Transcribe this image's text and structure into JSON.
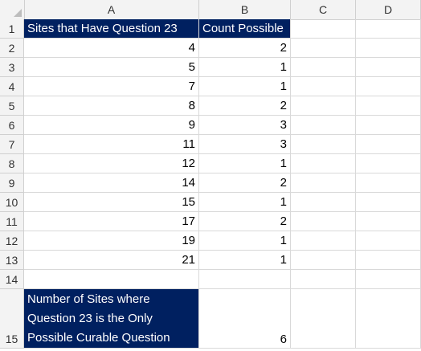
{
  "sheet": {
    "columns": [
      "A",
      "B",
      "C",
      "D"
    ],
    "header": {
      "row_number": "1",
      "col_a": "Sites that Have Question 23",
      "col_b": "Count Possible"
    },
    "rows": [
      {
        "row": "2",
        "a": "4",
        "b": "2"
      },
      {
        "row": "3",
        "a": "5",
        "b": "1"
      },
      {
        "row": "4",
        "a": "7",
        "b": "1"
      },
      {
        "row": "5",
        "a": "8",
        "b": "2"
      },
      {
        "row": "6",
        "a": "9",
        "b": "3"
      },
      {
        "row": "7",
        "a": "11",
        "b": "3"
      },
      {
        "row": "8",
        "a": "12",
        "b": "1"
      },
      {
        "row": "9",
        "a": "14",
        "b": "2"
      },
      {
        "row": "10",
        "a": "15",
        "b": "1"
      },
      {
        "row": "11",
        "a": "17",
        "b": "2"
      },
      {
        "row": "12",
        "a": "19",
        "b": "1"
      },
      {
        "row": "13",
        "a": "21",
        "b": "1"
      }
    ],
    "row14": {
      "row": "14"
    },
    "summary": {
      "row": "15",
      "label": "Number of Sites where Question 23 is the Only Possible Curable Question",
      "value": "6"
    },
    "colors": {
      "header_fill": "#002060",
      "header_text": "#ffffff"
    }
  }
}
